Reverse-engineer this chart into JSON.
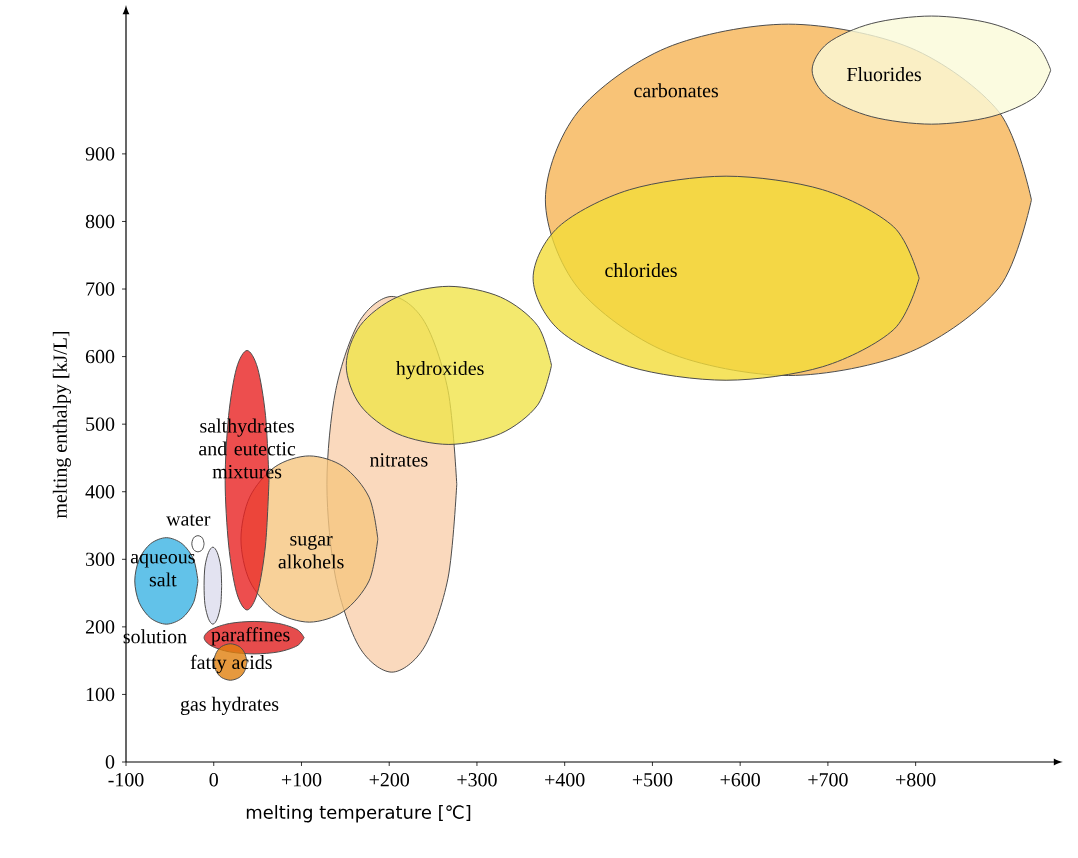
{
  "chart_data": {
    "type": "area",
    "xlabel": "melting temperature [℃]",
    "ylabel": "melting enthalpy [kJ/L]",
    "xlim": [
      -100,
      960
    ],
    "ylim": [
      0,
      1110
    ],
    "xticks": [
      -100,
      0,
      {
        "value": 100,
        "label": "+100"
      },
      {
        "value": 200,
        "label": "+200"
      },
      {
        "value": 300,
        "label": "+300"
      },
      {
        "value": 400,
        "label": "+400"
      },
      {
        "value": 500,
        "label": "+500"
      },
      {
        "value": 600,
        "label": "+600"
      },
      {
        "value": 700,
        "label": "+700"
      },
      {
        "value": 800,
        "label": "+800"
      }
    ],
    "yticks": [
      0,
      100,
      200,
      300,
      400,
      500,
      600,
      700,
      800,
      900
    ],
    "series": [
      {
        "color": "#f6b455",
        "x": [
          932,
          895,
          794,
          655,
          516,
          415,
          378,
          415,
          516,
          655,
          794,
          895
        ],
        "values": [
          832,
          962,
          1057,
          1092,
          1057,
          962,
          832,
          702,
          607,
          572,
          607,
          702
        ]
      },
      {
        "color": "#fafad8",
        "x": [
          954,
          936,
          886,
          818,
          750,
          700,
          682,
          700,
          750,
          818,
          886,
          936
        ],
        "values": [
          1024,
          1064,
          1093,
          1104,
          1093,
          1064,
          1024,
          984,
          955,
          944,
          955,
          984
        ]
      },
      {
        "color": "#f2dc38",
        "x": [
          804,
          775,
          694,
          584,
          474,
          393,
          364,
          393,
          474,
          584,
          694,
          775
        ],
        "values": [
          716,
          792,
          847,
          867,
          847,
          792,
          716,
          640,
          585,
          565,
          585,
          640
        ]
      },
      {
        "color": "#f9d0ad",
        "x": [
          277,
          267,
          240,
          203,
          166,
          139,
          129,
          139,
          166,
          203,
          240,
          267
        ],
        "values": [
          411,
          550,
          652,
          689,
          652,
          550,
          411,
          272,
          170,
          133,
          170,
          272
        ]
      },
      {
        "color": "#f0e34a",
        "x": [
          385,
          369,
          327,
          268,
          209,
          167,
          151,
          167,
          209,
          268,
          327,
          369
        ],
        "values": [
          587,
          646,
          688,
          704,
          688,
          646,
          587,
          528,
          486,
          470,
          486,
          528
        ]
      },
      {
        "color": "#f6c680",
        "x": [
          187,
          177,
          148,
          109,
          70,
          41,
          31,
          41,
          70,
          109,
          148,
          177
        ],
        "values": [
          330,
          392,
          437,
          453,
          437,
          392,
          330,
          268,
          223,
          207,
          223,
          268
        ]
      },
      {
        "color": "#e82222",
        "x": [
          63,
          59,
          50,
          38,
          26,
          17,
          13,
          17,
          26,
          38,
          50,
          59
        ],
        "values": [
          417,
          513,
          583,
          609,
          583,
          513,
          417,
          321,
          251,
          225,
          251,
          321
        ]
      },
      {
        "color": "#3bb3e3",
        "x": [
          -18,
          -23,
          -36,
          -54,
          -72,
          -85,
          -90,
          -85,
          -72,
          -54,
          -36,
          -23
        ],
        "values": [
          268,
          300,
          323,
          332,
          323,
          300,
          268,
          236,
          213,
          204,
          213,
          236
        ]
      },
      {
        "color": "#dcdcee",
        "x": [
          9,
          8,
          4,
          -1,
          -6,
          -10,
          -11,
          -10,
          -6,
          -1,
          4,
          8
        ],
        "values": [
          261,
          289,
          310,
          318,
          310,
          289,
          261,
          233,
          212,
          204,
          212,
          233
        ]
      },
      {
        "color": "#ffffff",
        "x": [
          -11,
          -12,
          -14,
          -18,
          -22,
          -24,
          -25,
          -24,
          -22,
          -18,
          -14,
          -12
        ],
        "values": [
          323,
          329,
          333,
          335,
          333,
          329,
          323,
          317,
          313,
          311,
          313,
          317
        ]
      },
      {
        "color": "#e01f1f",
        "x": [
          103,
          95,
          74,
          46,
          18,
          -3,
          -11,
          -3,
          18,
          46,
          74,
          95
        ],
        "values": [
          184,
          196,
          205,
          208,
          205,
          196,
          184,
          172,
          163,
          160,
          163,
          172
        ]
      },
      {
        "color": "#e0800e",
        "x": [
          38,
          35,
          29,
          19,
          9,
          3,
          0,
          3,
          9,
          19,
          29,
          35
        ],
        "values": [
          148,
          162,
          171,
          175,
          171,
          162,
          148,
          134,
          125,
          121,
          125,
          134
        ]
      }
    ],
    "annotations": [
      "carbonates",
      "Fluorides",
      "chlorides",
      "hydroxides",
      "nitrates",
      "sugar alkohels",
      "salthydrates and eutectic mixtures",
      "water",
      "aqueous salt",
      "solution",
      "paraffines",
      "fatty acids",
      "gas hydrates"
    ]
  }
}
